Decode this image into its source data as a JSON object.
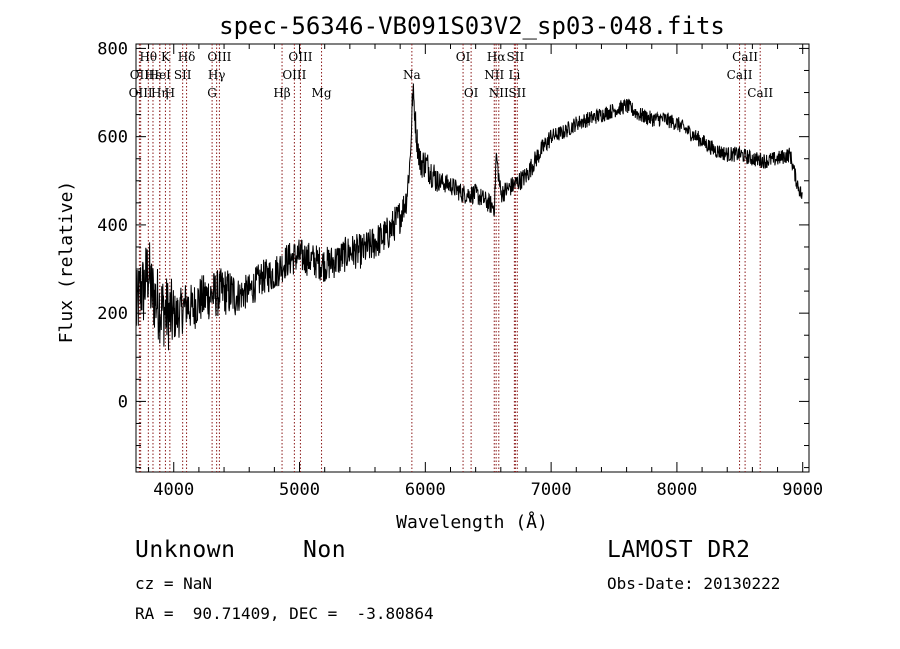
{
  "chart_data": {
    "type": "line",
    "title": "spec-56346-VB091S03V2_sp03-048.fits",
    "xlabel": "Wavelength (Å)",
    "ylabel": "Flux (relative)",
    "xlim": [
      3700,
      9050
    ],
    "ylim": [
      -160,
      810
    ],
    "xticks": [
      4000,
      5000,
      6000,
      7000,
      8000,
      9000
    ],
    "yticks": [
      0,
      200,
      400,
      600,
      800
    ],
    "grid": false,
    "line_color": "#000000",
    "marker_color": "#8b1a1a",
    "series": [
      {
        "x": [
          3700,
          3720,
          3740,
          3760,
          3780,
          3800,
          3820,
          3840,
          3860,
          3880,
          3900,
          3950,
          4000,
          4050,
          4100,
          4150,
          4200,
          4300,
          4400,
          4500,
          4600,
          4700,
          4800,
          4900,
          5000,
          5100,
          5200,
          5300,
          5400,
          5500,
          5600,
          5700,
          5800,
          5850,
          5880,
          5900,
          5910,
          5930,
          5960,
          6000,
          6050,
          6100,
          6200,
          6300,
          6400,
          6500,
          6550,
          6563,
          6600,
          6700,
          6800,
          6900,
          7000,
          7100,
          7200,
          7300,
          7400,
          7500,
          7600,
          7700,
          7800,
          7900,
          8000,
          8100,
          8200,
          8300,
          8400,
          8500,
          8600,
          8700,
          8800,
          8900,
          8950,
          9000
        ],
        "y": [
          200,
          230,
          260,
          250,
          280,
          300,
          250,
          240,
          230,
          220,
          210,
          200,
          190,
          200,
          220,
          210,
          230,
          240,
          250,
          240,
          250,
          280,
          290,
          320,
          330,
          320,
          310,
          320,
          340,
          340,
          360,
          380,
          420,
          460,
          550,
          700,
          680,
          600,
          540,
          540,
          520,
          500,
          490,
          470,
          470,
          450,
          440,
          560,
          470,
          490,
          510,
          560,
          600,
          610,
          630,
          640,
          650,
          660,
          670,
          650,
          640,
          640,
          630,
          610,
          590,
          570,
          560,
          560,
          550,
          545,
          550,
          560,
          500,
          460
        ]
      }
    ],
    "line_markers": [
      {
        "label": "Hθ",
        "x": 3798,
        "row": 1
      },
      {
        "label": "OII",
        "x": 3727,
        "row": 2
      },
      {
        "label": "OIII",
        "x": 3737,
        "row": 3
      },
      {
        "label": "Hε",
        "x": 3835,
        "row": 2
      },
      {
        "label": "Hη",
        "x": 3889,
        "row": 3
      },
      {
        "label": "K",
        "x": 3934,
        "row": 1
      },
      {
        "label": "HeI",
        "x": 3889,
        "row": 2
      },
      {
        "label": "H",
        "x": 3969,
        "row": 3
      },
      {
        "label": "Hδ",
        "x": 4102,
        "row": 1
      },
      {
        "label": "SII",
        "x": 4071,
        "row": 2
      },
      {
        "label": "OIII",
        "x": 4363,
        "row": 1
      },
      {
        "label": "Hγ",
        "x": 4341,
        "row": 2
      },
      {
        "label": "G",
        "x": 4305,
        "row": 3
      },
      {
        "label": "OIII",
        "x": 5007,
        "row": 1
      },
      {
        "label": "OIII",
        "x": 4959,
        "row": 2
      },
      {
        "label": "Hβ",
        "x": 4861,
        "row": 3
      },
      {
        "label": "Mg",
        "x": 5175,
        "row": 3
      },
      {
        "label": "Na",
        "x": 5893,
        "row": 2
      },
      {
        "label": "OI",
        "x": 6300,
        "row": 1
      },
      {
        "label": "OI",
        "x": 6364,
        "row": 3
      },
      {
        "label": "Hα",
        "x": 6563,
        "row": 1
      },
      {
        "label": "SII",
        "x": 6716,
        "row": 1
      },
      {
        "label": "NII",
        "x": 6548,
        "row": 2
      },
      {
        "label": "Li",
        "x": 6708,
        "row": 2
      },
      {
        "label": "NII",
        "x": 6584,
        "row": 3
      },
      {
        "label": "SII",
        "x": 6731,
        "row": 3
      },
      {
        "label": "CaII",
        "x": 8542,
        "row": 1
      },
      {
        "label": "CaII",
        "x": 8498,
        "row": 2
      },
      {
        "label": "CaII",
        "x": 8662,
        "row": 3
      }
    ]
  },
  "info": {
    "class_label": "Unknown",
    "subclass_label": "Non",
    "survey": "LAMOST DR2",
    "redshift": "cz = NaN",
    "obs_date": "Obs-Date: 20130222",
    "coords": "RA =  90.71409, DEC =  -3.80864"
  }
}
